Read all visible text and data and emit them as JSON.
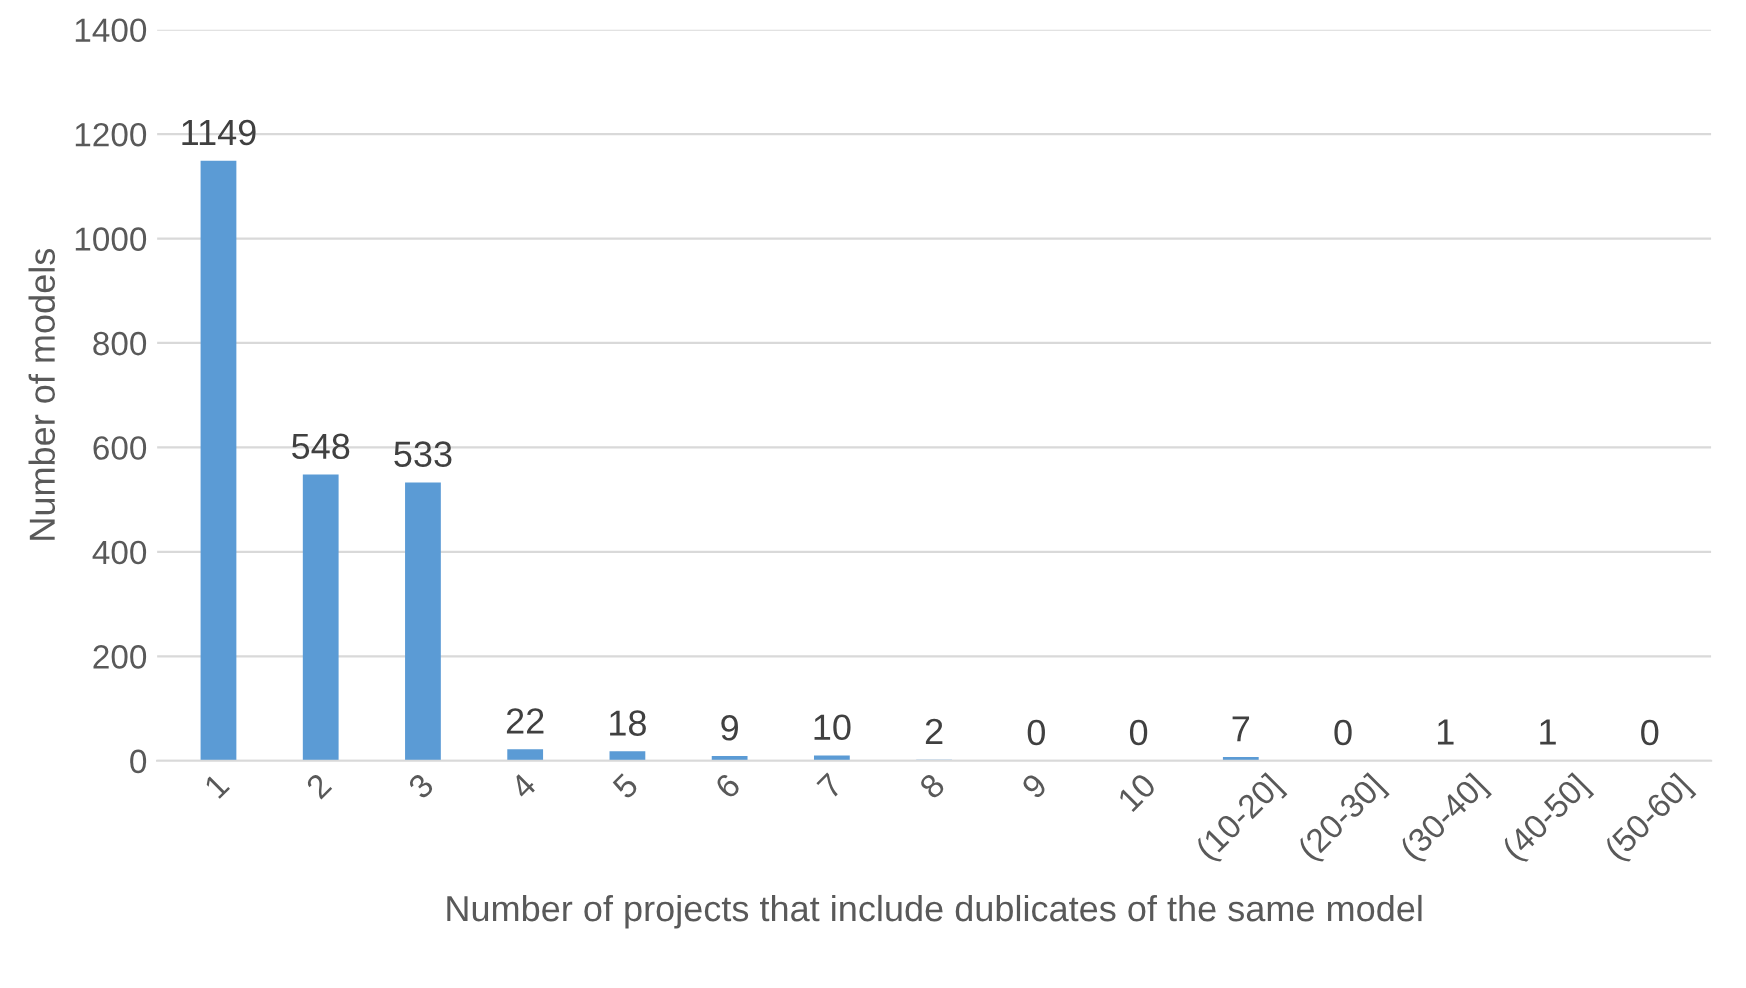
{
  "chart_data": {
    "type": "bar",
    "xlabel": "Number of projects that include dublicates of the same model",
    "ylabel": "Number of models",
    "categories": [
      "1",
      "2",
      "3",
      "4",
      "5",
      "6",
      "7",
      "8",
      "9",
      "10",
      "(10-20]",
      "(20-30]",
      "(30-40]",
      "(40-50]",
      "(50-60]"
    ],
    "values": [
      1149,
      548,
      533,
      22,
      18,
      9,
      10,
      2,
      0,
      0,
      7,
      0,
      1,
      1,
      0
    ],
    "color": "#5b9bd5",
    "ylim": [
      0,
      1400
    ],
    "yticks": [
      0,
      200,
      400,
      600,
      800,
      1000,
      1200,
      1400
    ],
    "grid": "y",
    "data_labels": true
  }
}
